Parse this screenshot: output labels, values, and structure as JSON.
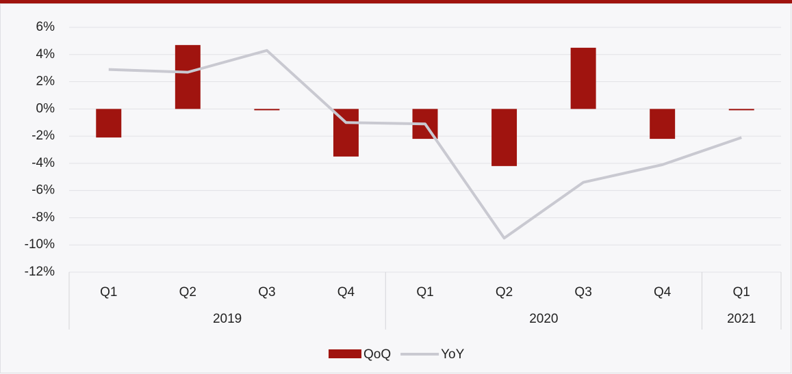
{
  "chart_data": {
    "type": "bar-line",
    "categories": [
      "Q1",
      "Q2",
      "Q3",
      "Q4",
      "Q1",
      "Q2",
      "Q3",
      "Q4",
      "Q1"
    ],
    "groups": [
      {
        "label": "2019",
        "count": 4
      },
      {
        "label": "2020",
        "count": 4
      },
      {
        "label": "2021",
        "count": 1
      }
    ],
    "series": [
      {
        "name": "QoQ",
        "type": "bar",
        "color": "#a0140f",
        "values": [
          -2.1,
          4.7,
          -0.1,
          -3.5,
          -2.2,
          -4.2,
          4.5,
          -2.2,
          -0.1
        ]
      },
      {
        "name": "YoY",
        "type": "line",
        "color": "#c9c9d1",
        "values": [
          2.9,
          2.7,
          4.3,
          -1.0,
          -1.1,
          -9.5,
          -5.4,
          -4.1,
          -2.1
        ]
      }
    ],
    "ylim": [
      -12,
      6
    ],
    "yticks": [
      {
        "value": -12,
        "label": "-12%"
      },
      {
        "value": -10,
        "label": "-10%"
      },
      {
        "value": -8,
        "label": "-8%"
      },
      {
        "value": -6,
        "label": "-6%"
      },
      {
        "value": -4,
        "label": "-4%"
      },
      {
        "value": -2,
        "label": "-2%"
      },
      {
        "value": 0,
        "label": "0%"
      },
      {
        "value": 2,
        "label": "2%"
      },
      {
        "value": 4,
        "label": "4%"
      },
      {
        "value": 6,
        "label": "6%"
      }
    ],
    "grid": true,
    "legend": "bottom"
  }
}
